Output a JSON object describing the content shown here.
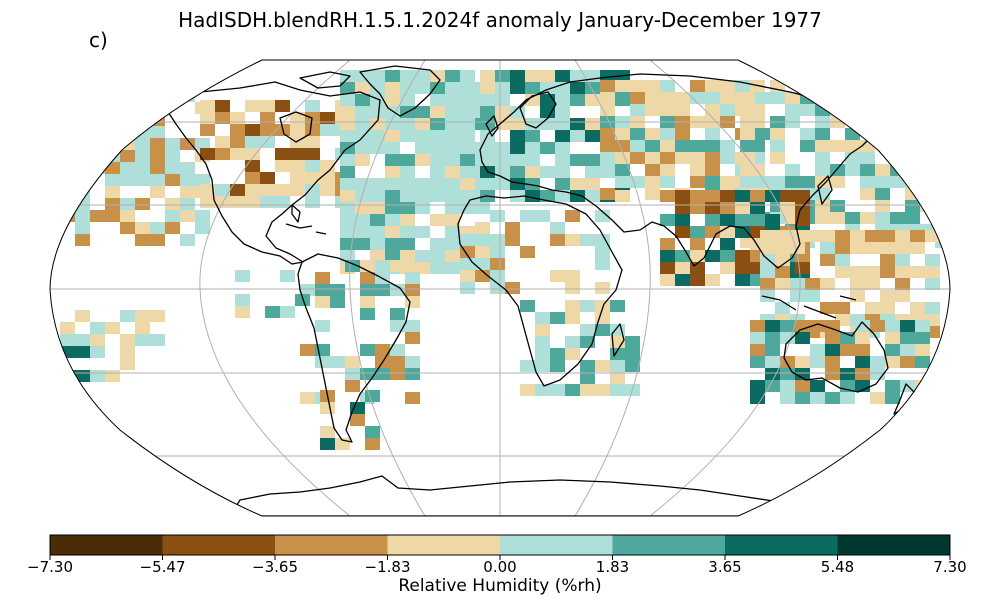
{
  "title": "HadISDH.blendRH.1.5.1.2024f anomaly January-December 1977",
  "panel_label": "c)",
  "colorbar": {
    "label": "Relative Humidity (%rh)",
    "ticks": [
      "−7.30",
      "−5.47",
      "−3.65",
      "−1.83",
      "0.00",
      "1.83",
      "3.65",
      "5.48",
      "7.30"
    ],
    "tick_values": [
      -7.3,
      -5.47,
      -3.65,
      -1.83,
      0.0,
      1.83,
      3.65,
      5.48,
      7.3
    ],
    "colors": [
      "#4a2c08",
      "#8a5013",
      "#c8914a",
      "#eed8a8",
      "#aedfd8",
      "#4fa89c",
      "#0c6b60",
      "#003830"
    ]
  },
  "map": {
    "projection": "Robinson",
    "gridlines": true,
    "coastlines": true
  }
}
